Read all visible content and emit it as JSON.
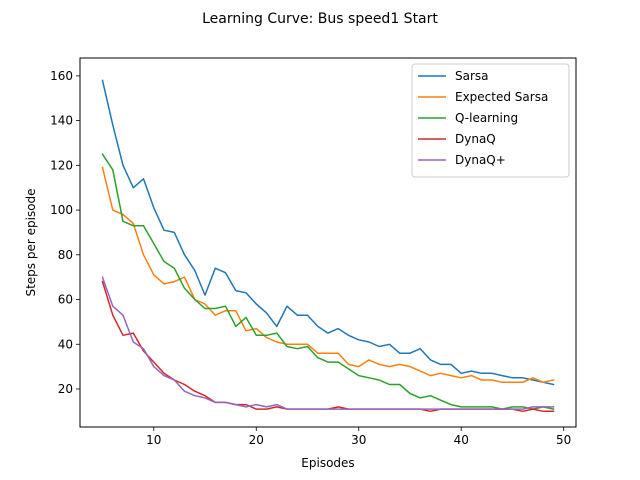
{
  "chart_data": {
    "type": "line",
    "title": "Learning Curve: Bus speed1 Start",
    "xlabel": "Episodes",
    "ylabel": "Steps per episode",
    "xlim": [
      2.8,
      51.2
    ],
    "ylim": [
      3,
      168
    ],
    "xticks": [
      10,
      20,
      30,
      40,
      50
    ],
    "yticks": [
      20,
      40,
      60,
      80,
      100,
      120,
      140,
      160
    ],
    "grid": false,
    "legend_position": "top-right",
    "x": [
      5,
      6,
      7,
      8,
      9,
      10,
      11,
      12,
      13,
      14,
      15,
      16,
      17,
      18,
      19,
      20,
      21,
      22,
      23,
      24,
      25,
      26,
      27,
      28,
      29,
      30,
      31,
      32,
      33,
      34,
      35,
      36,
      37,
      38,
      39,
      40,
      41,
      42,
      43,
      44,
      45,
      46,
      47,
      48,
      49
    ],
    "series": [
      {
        "name": "Sarsa",
        "color": "#1f77b4",
        "values": [
          158,
          138,
          120,
          110,
          114,
          101,
          91,
          90,
          80,
          73,
          62,
          74,
          72,
          64,
          63,
          58,
          54,
          48,
          57,
          53,
          53,
          48,
          45,
          47,
          44,
          42,
          41,
          39,
          40,
          36,
          36,
          38,
          33,
          31,
          31,
          27,
          28,
          27,
          27,
          26,
          25,
          25,
          24,
          23,
          22
        ]
      },
      {
        "name": "Expected Sarsa",
        "color": "#ff7f0e",
        "values": [
          119,
          100,
          98,
          94,
          80,
          71,
          67,
          68,
          70,
          60,
          58,
          53,
          55,
          55,
          46,
          47,
          43,
          41,
          40,
          40,
          40,
          36,
          36,
          36,
          31,
          30,
          33,
          31,
          30,
          31,
          30,
          28,
          26,
          27,
          26,
          25,
          26,
          24,
          24,
          23,
          23,
          23,
          25,
          23,
          24
        ]
      },
      {
        "name": "Q-learning",
        "color": "#2ca02c",
        "values": [
          125,
          118,
          95,
          93,
          93,
          85,
          77,
          74,
          65,
          60,
          56,
          56,
          57,
          48,
          52,
          44,
          44,
          45,
          39,
          38,
          39,
          34,
          32,
          32,
          29,
          26,
          25,
          24,
          22,
          22,
          18,
          16,
          17,
          15,
          13,
          12,
          12,
          12,
          12,
          11,
          12,
          12,
          11,
          12,
          11
        ]
      },
      {
        "name": "DynaQ",
        "color": "#d62728",
        "values": [
          68,
          53,
          44,
          45,
          37,
          32,
          27,
          24,
          22,
          19,
          17,
          14,
          14,
          13,
          13,
          11,
          11,
          12,
          11,
          11,
          11,
          11,
          11,
          12,
          11,
          11,
          11,
          11,
          11,
          11,
          11,
          11,
          10,
          11,
          11,
          11,
          11,
          11,
          11,
          11,
          11,
          10,
          11,
          10,
          10
        ]
      },
      {
        "name": "DynaQ+",
        "color": "#9467bd",
        "values": [
          70,
          57,
          53,
          41,
          38,
          30,
          26,
          24,
          19,
          17,
          16,
          14,
          14,
          13,
          12,
          13,
          12,
          13,
          11,
          11,
          11,
          11,
          11,
          11,
          11,
          11,
          11,
          11,
          11,
          11,
          11,
          11,
          11,
          11,
          11,
          11,
          11,
          11,
          11,
          11,
          11,
          11,
          12,
          12,
          12
        ]
      }
    ]
  }
}
